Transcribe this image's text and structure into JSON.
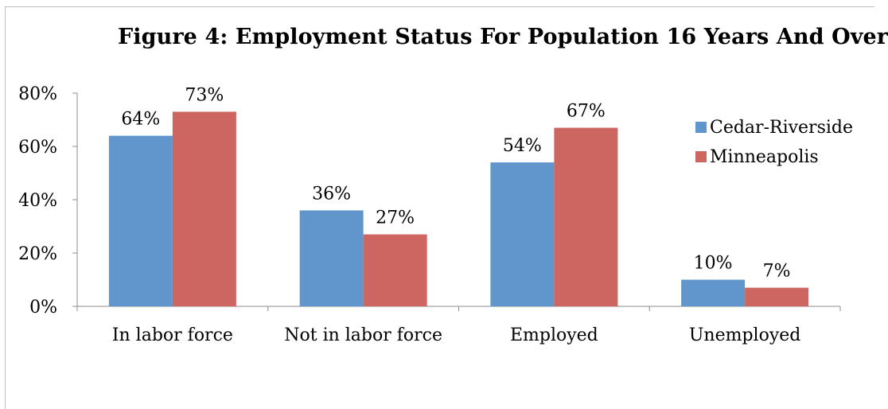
{
  "chart_data": {
    "type": "bar",
    "title": "Figure 4: Employment Status For Population 16 Years And Over",
    "categories": [
      "In labor force",
      "Not in labor force",
      "Employed",
      "Unemployed"
    ],
    "series": [
      {
        "name": "Cedar-Riverside",
        "values": [
          64,
          36,
          54,
          10
        ],
        "labels": [
          "64%",
          "36%",
          "54%",
          "10%"
        ],
        "color": "#6096cc"
      },
      {
        "name": "Minneapolis",
        "values": [
          73,
          27,
          67,
          7
        ],
        "labels": [
          "73%",
          "27%",
          "67%",
          "7%"
        ],
        "color": "#cd6660"
      }
    ],
    "ylim": [
      0,
      80
    ],
    "yticks": [
      0,
      20,
      40,
      60,
      80
    ],
    "ytick_labels": [
      "0%",
      "20%",
      "40%",
      "60%",
      "80%"
    ],
    "xlabel": "",
    "ylabel": "",
    "grid": false,
    "legend_position": "top-right"
  }
}
